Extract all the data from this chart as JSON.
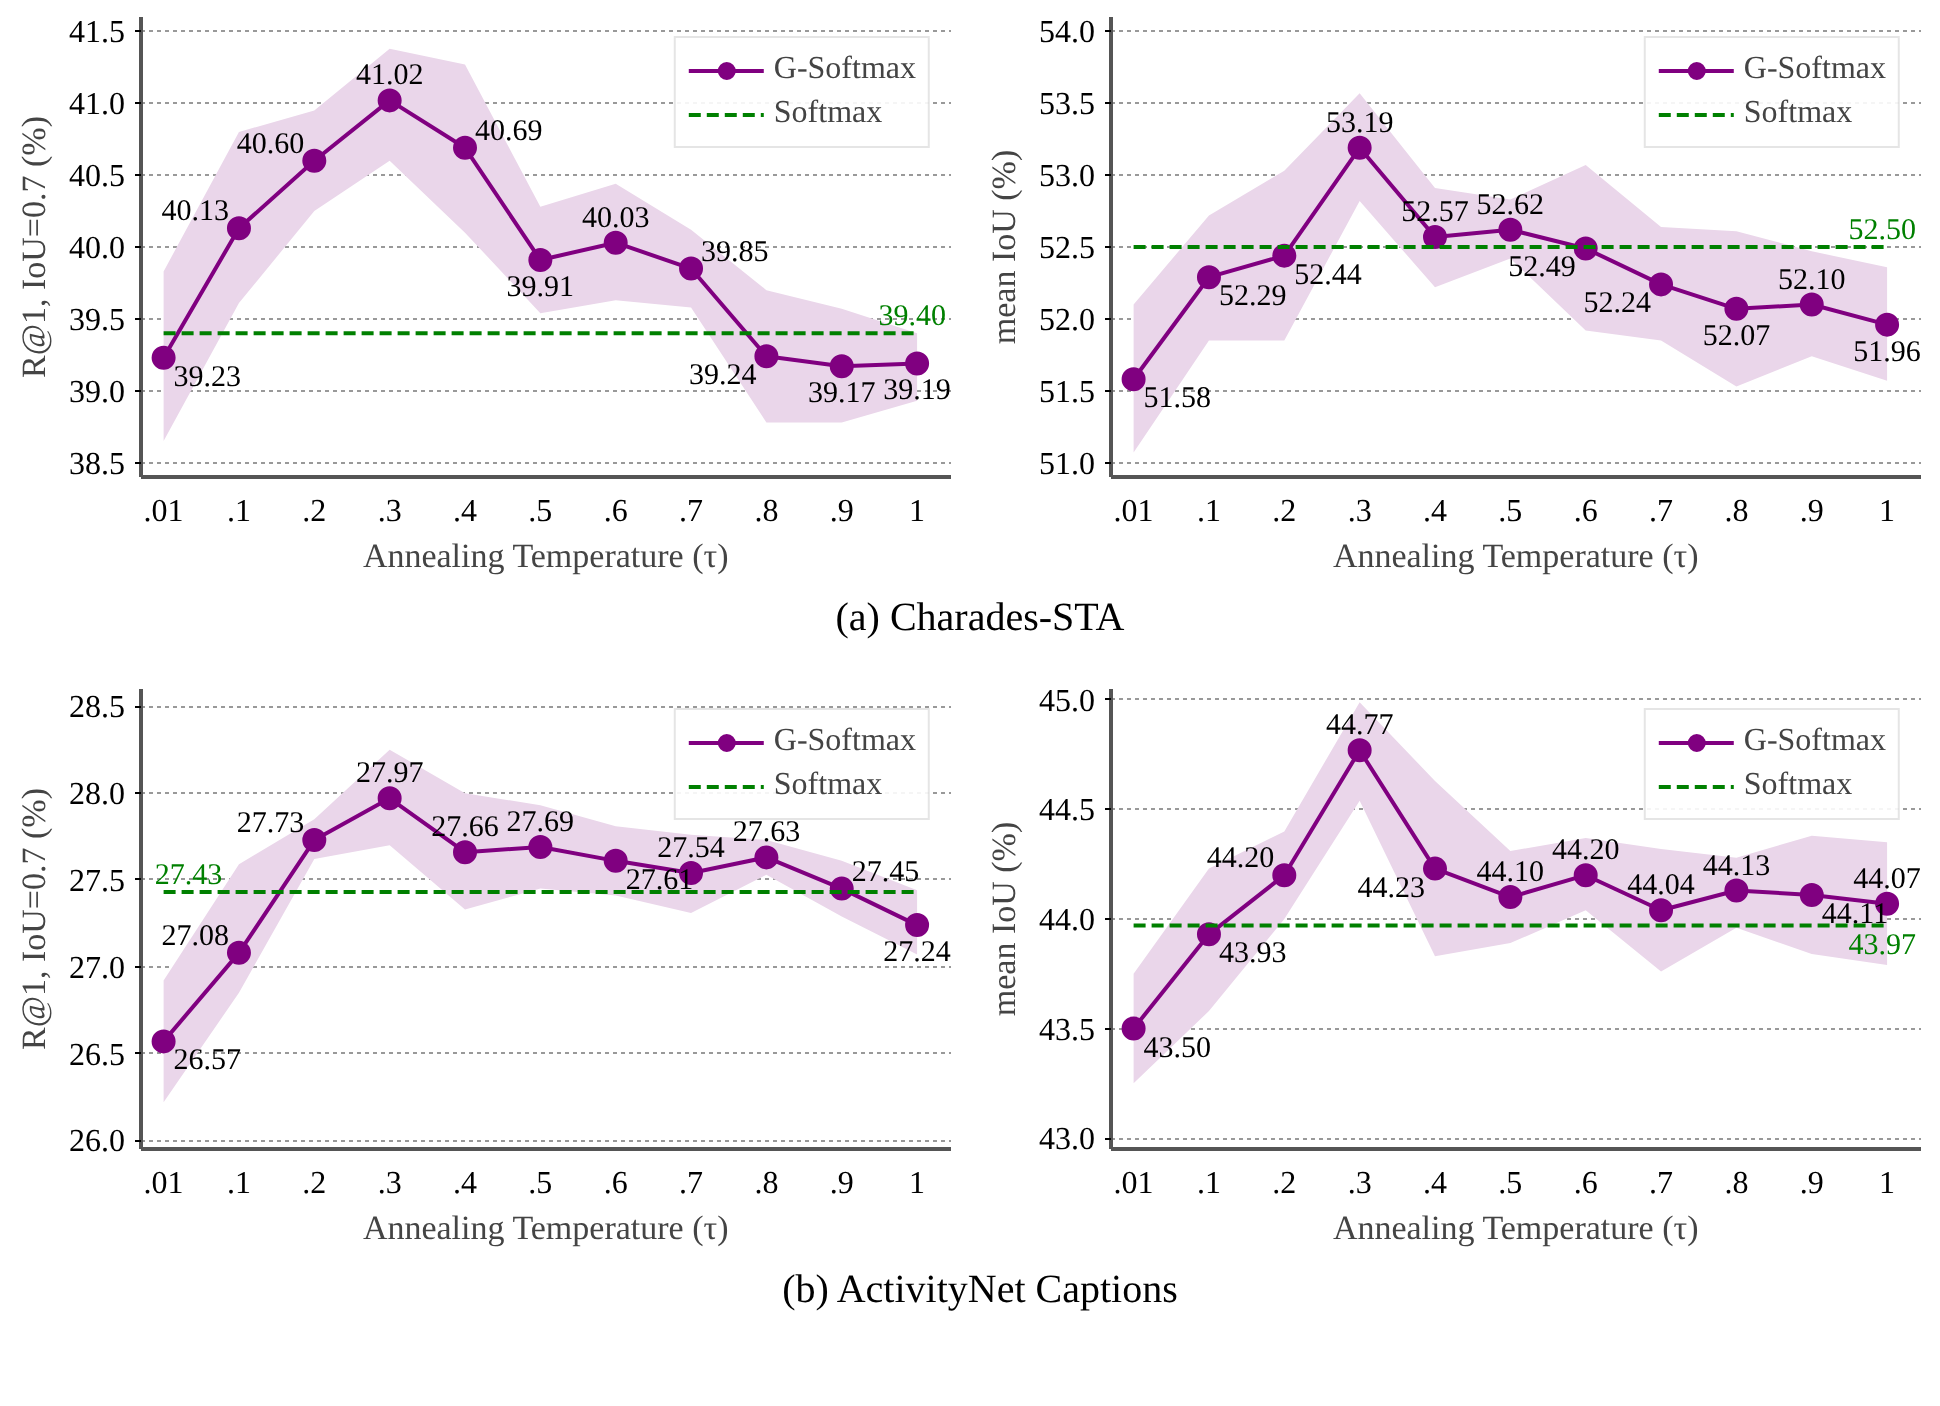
{
  "chart_data": [
    {
      "type": "line",
      "xlabel": "Annealing Temperature (τ)",
      "ylabel": "R@1, IoU=0.7 (%)",
      "categories": [
        ".01",
        ".1",
        ".2",
        ".3",
        ".4",
        ".5",
        ".6",
        ".7",
        ".8",
        ".9",
        "1"
      ],
      "ylim": [
        38.4,
        41.6
      ],
      "yticks": [
        {
          "value": 38.5,
          "label": "38.5"
        },
        {
          "value": 39,
          "label": "39.0"
        },
        {
          "value": 39.5,
          "label": "39.5"
        },
        {
          "value": 40,
          "label": "40.0"
        },
        {
          "value": 40.5,
          "label": "40.5"
        },
        {
          "value": 41,
          "label": "41.0"
        },
        {
          "value": 41.5,
          "label": "41.5"
        }
      ],
      "grid": "y",
      "legend": "top right",
      "series": [
        {
          "name": "G-Softmax",
          "color": "#800080",
          "marker": "circle",
          "line_style": "solid",
          "values": [
            39.23,
            40.13,
            40.6,
            41.02,
            40.69,
            39.91,
            40.03,
            39.85,
            39.24,
            39.17,
            39.19
          ],
          "value_labels": [
            "39.23",
            "40.13",
            "40.60",
            "41.02",
            "40.69",
            "39.91",
            "40.03",
            "39.85",
            "39.24",
            "39.17",
            "39.19"
          ],
          "lower": [
            38.65,
            39.61,
            40.25,
            40.6,
            40.1,
            39.54,
            39.63,
            39.58,
            38.78,
            38.78,
            38.93
          ],
          "upper": [
            39.83,
            40.8,
            40.95,
            41.38,
            41.27,
            40.28,
            40.44,
            40.12,
            39.7,
            39.57,
            39.4
          ]
        },
        {
          "name": "Softmax",
          "color": "#008000",
          "marker": "none",
          "line_style": "dashed",
          "values": [
            39.4,
            39.4,
            39.4,
            39.4,
            39.4,
            39.4,
            39.4,
            39.4,
            39.4,
            39.4,
            39.4
          ],
          "value_labels": [
            null,
            null,
            null,
            null,
            null,
            null,
            null,
            null,
            null,
            null,
            "39.40"
          ]
        }
      ]
    },
    {
      "type": "line",
      "xlabel": "Annealing Temperature (τ)",
      "ylabel": "mean IoU (%)",
      "categories": [
        ".01",
        ".1",
        ".2",
        ".3",
        ".4",
        ".5",
        ".6",
        ".7",
        ".8",
        ".9",
        "1"
      ],
      "ylim": [
        50.9,
        54.1
      ],
      "yticks": [
        {
          "value": 51,
          "label": "51.0"
        },
        {
          "value": 51.5,
          "label": "51.5"
        },
        {
          "value": 52,
          "label": "52.0"
        },
        {
          "value": 52.5,
          "label": "52.5"
        },
        {
          "value": 53,
          "label": "53.0"
        },
        {
          "value": 53.5,
          "label": "53.5"
        },
        {
          "value": 54,
          "label": "54.0"
        }
      ],
      "grid": "y",
      "legend": "top right",
      "annotations": [
        "(a) Charades-STA"
      ],
      "series": [
        {
          "name": "G-Softmax",
          "color": "#800080",
          "marker": "circle",
          "line_style": "solid",
          "values": [
            51.58,
            52.29,
            52.44,
            53.19,
            52.57,
            52.62,
            52.49,
            52.24,
            52.07,
            52.1,
            51.96
          ],
          "value_labels": [
            "51.58",
            "52.29",
            "52.44",
            "53.19",
            "52.57",
            "52.62",
            "52.49",
            "52.24",
            "52.07",
            "52.10",
            "51.96"
          ],
          "lower": [
            51.07,
            51.85,
            51.85,
            52.82,
            52.22,
            52.42,
            51.92,
            51.85,
            51.53,
            51.74,
            51.57
          ],
          "upper": [
            52.1,
            52.72,
            53.03,
            53.57,
            52.91,
            52.83,
            53.07,
            52.64,
            52.61,
            52.47,
            52.36
          ]
        },
        {
          "name": "Softmax",
          "color": "#008000",
          "marker": "none",
          "line_style": "dashed",
          "values": [
            52.5,
            52.5,
            52.5,
            52.5,
            52.5,
            52.5,
            52.5,
            52.5,
            52.5,
            52.5,
            52.5
          ],
          "value_labels": [
            null,
            null,
            null,
            null,
            null,
            null,
            null,
            null,
            null,
            null,
            "52.50"
          ]
        }
      ]
    },
    {
      "type": "line",
      "xlabel": "Annealing Temperature (τ)",
      "ylabel": "R@1, IoU=0.7 (%)",
      "categories": [
        ".01",
        ".1",
        ".2",
        ".3",
        ".4",
        ".5",
        ".6",
        ".7",
        ".8",
        ".9",
        "1"
      ],
      "ylim": [
        25.95,
        28.6
      ],
      "yticks": [
        {
          "value": 26,
          "label": "26.0"
        },
        {
          "value": 26.5,
          "label": "26.5"
        },
        {
          "value": 27,
          "label": "27.0"
        },
        {
          "value": 27.5,
          "label": "27.5"
        },
        {
          "value": 28,
          "label": "28.0"
        },
        {
          "value": 28.5,
          "label": "28.5"
        }
      ],
      "grid": "y",
      "legend": "top right",
      "series": [
        {
          "name": "G-Softmax",
          "color": "#800080",
          "marker": "circle",
          "line_style": "solid",
          "values": [
            26.57,
            27.08,
            27.73,
            27.97,
            27.66,
            27.69,
            27.61,
            27.54,
            27.63,
            27.45,
            27.24
          ],
          "value_labels": [
            "26.57",
            "27.08",
            "27.73",
            "27.97",
            "27.66",
            "27.69",
            "27.61",
            "27.54",
            "27.63",
            "27.45",
            "27.24"
          ],
          "lower": [
            26.22,
            26.85,
            27.62,
            27.7,
            27.33,
            27.45,
            27.41,
            27.31,
            27.53,
            27.29,
            27.07
          ],
          "upper": [
            26.92,
            27.59,
            27.85,
            28.25,
            28.0,
            27.93,
            27.81,
            27.76,
            27.73,
            27.61,
            27.44
          ]
        },
        {
          "name": "Softmax",
          "color": "#008000",
          "marker": "none",
          "line_style": "dashed",
          "values": [
            27.43,
            27.43,
            27.43,
            27.43,
            27.43,
            27.43,
            27.43,
            27.43,
            27.43,
            27.43,
            27.43
          ],
          "value_labels": [
            "27.43",
            null,
            null,
            null,
            null,
            null,
            null,
            null,
            null,
            null,
            null
          ]
        }
      ]
    },
    {
      "type": "line",
      "xlabel": "Annealing Temperature (τ)",
      "ylabel": "mean IoU (%)",
      "categories": [
        ".01",
        ".1",
        ".2",
        ".3",
        ".4",
        ".5",
        ".6",
        ".7",
        ".8",
        ".9",
        "1"
      ],
      "ylim": [
        42.95,
        45.05
      ],
      "yticks": [
        {
          "value": 43,
          "label": "43.0"
        },
        {
          "value": 43.5,
          "label": "43.5"
        },
        {
          "value": 44,
          "label": "44.0"
        },
        {
          "value": 44.5,
          "label": "44.5"
        },
        {
          "value": 45,
          "label": "45.0"
        }
      ],
      "grid": "y",
      "legend": "top right",
      "annotations": [
        "(b) ActivityNet Captions"
      ],
      "series": [
        {
          "name": "G-Softmax",
          "color": "#800080",
          "marker": "circle",
          "line_style": "solid",
          "values": [
            43.5,
            43.93,
            44.2,
            44.77,
            44.23,
            44.1,
            44.2,
            44.04,
            44.13,
            44.11,
            44.07
          ],
          "value_labels": [
            "43.50",
            "43.93",
            "44.20",
            "44.77",
            "44.23",
            "44.10",
            "44.20",
            "44.04",
            "44.13",
            "44.11",
            "44.07"
          ],
          "lower": [
            43.25,
            43.58,
            44.0,
            44.54,
            43.83,
            43.89,
            44.04,
            43.76,
            43.96,
            43.84,
            43.79
          ],
          "upper": [
            43.75,
            44.23,
            44.4,
            44.99,
            44.63,
            44.31,
            44.37,
            44.32,
            44.28,
            44.38,
            44.35
          ]
        },
        {
          "name": "Softmax",
          "color": "#008000",
          "marker": "none",
          "line_style": "dashed",
          "values": [
            43.97,
            43.97,
            43.97,
            43.97,
            43.97,
            43.97,
            43.97,
            43.97,
            43.97,
            43.97,
            43.97
          ],
          "value_labels": [
            null,
            null,
            null,
            null,
            null,
            null,
            null,
            null,
            null,
            null,
            "43.97"
          ]
        }
      ]
    }
  ]
}
